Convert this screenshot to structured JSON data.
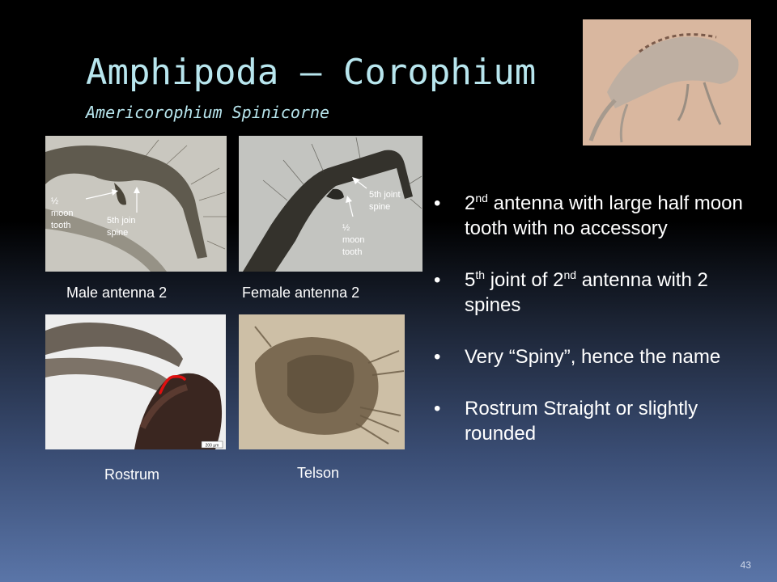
{
  "slide": {
    "title": "Amphipoda – Corophium",
    "subtitle": "Americorophium Spinicorne",
    "page_number": "43"
  },
  "images": {
    "male_antenna": {
      "caption": "Male antenna 2",
      "label_moon_1": "½",
      "label_moon_2": "moon",
      "label_moon_3": "tooth",
      "label_spine_1": "5th join",
      "label_spine_2": "spine"
    },
    "female_antenna": {
      "caption": "Female antenna 2",
      "label_spine_1": "5th joint",
      "label_spine_2": "spine",
      "label_moon_1": "½",
      "label_moon_2": "moon",
      "label_moon_3": "tooth"
    },
    "rostrum": {
      "caption": "Rostrum",
      "scale_label": "200 µm"
    },
    "telson": {
      "caption": "Telson"
    }
  },
  "bullets": [
    {
      "bullet": "•",
      "parts": [
        "2",
        "nd",
        " antenna with large half moon tooth with no accessory"
      ]
    },
    {
      "bullet": "•",
      "parts": [
        "5",
        "th",
        " joint of 2",
        "nd",
        " antenna with 2 spines"
      ]
    },
    {
      "bullet": "•",
      "text": "Very “Spiny”, hence the name"
    },
    {
      "bullet": "•",
      "text": "Rostrum Straight or slightly rounded"
    }
  ],
  "colors": {
    "title": "#b8e6ee",
    "background_top": "#000000",
    "background_bottom": "#5a75a8",
    "rostrum_marker": "#e01010"
  }
}
